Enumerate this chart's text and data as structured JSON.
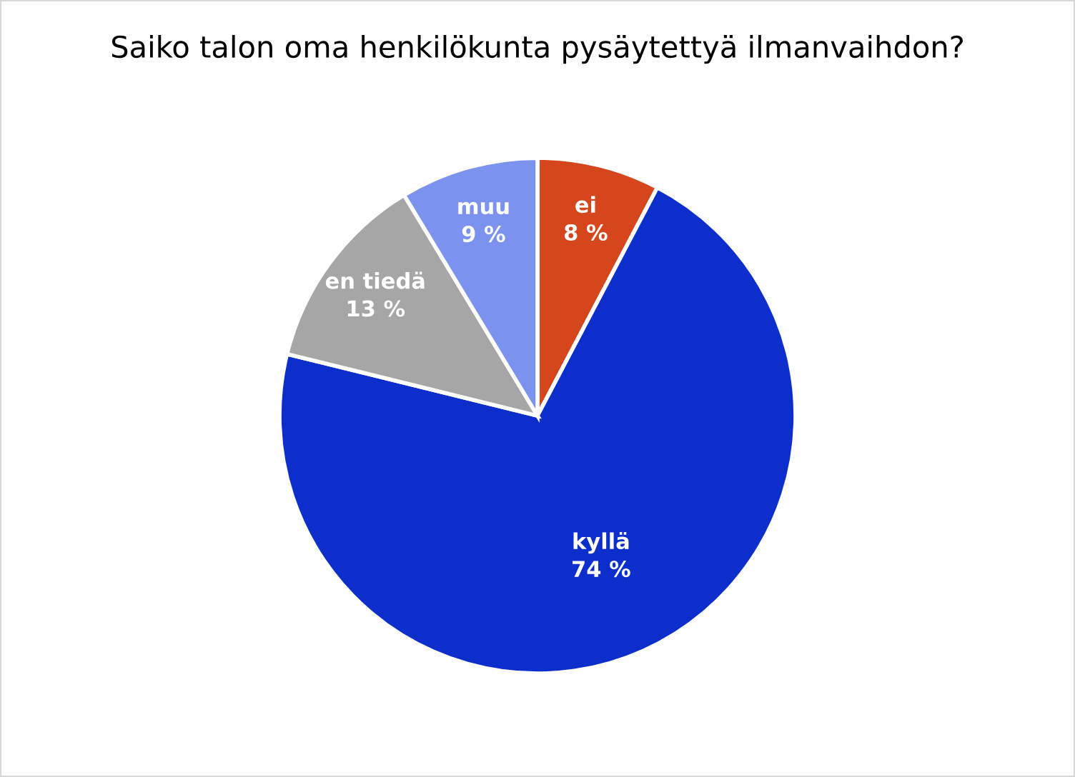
{
  "chart_data": {
    "type": "pie",
    "title": "Saiko talon oma henkilökunta pysäytettyä ilmanvaihdon?",
    "categories": [
      "ei",
      "kyllä",
      "en tiedä",
      "muu"
    ],
    "values": [
      8,
      74,
      13,
      9
    ],
    "value_labels": [
      "8 %",
      "74 %",
      "13 %",
      "9 %"
    ],
    "colors": [
      "#d5461c",
      "#0c2fcc",
      "#a6a6a6",
      "#7b93ef"
    ],
    "legend": false
  }
}
